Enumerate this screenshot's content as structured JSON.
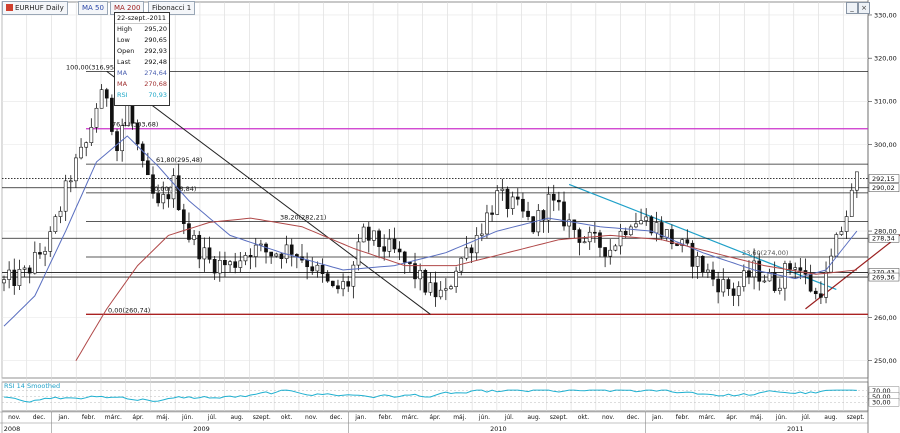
{
  "toolbar": {
    "symbol": "EURHUF Daily",
    "ma50": "MA 50",
    "ma200": "MA 200",
    "fib": "Fibonacci 1"
  },
  "window_controls": {
    "minimize": "_",
    "close": "×"
  },
  "info": {
    "date": "22-szept.-2011",
    "rows": [
      {
        "label": "High",
        "value": "295,20",
        "color": "#111111"
      },
      {
        "label": "Low",
        "value": "290,65",
        "color": "#111111"
      },
      {
        "label": "Open",
        "value": "292,93",
        "color": "#111111"
      },
      {
        "label": "Last",
        "value": "292,48",
        "color": "#111111"
      },
      {
        "label": "MA",
        "value": "274,64",
        "color": "#4a5fb0"
      },
      {
        "label": "MA",
        "value": "270,68",
        "color": "#a03030"
      },
      {
        "label": "RSI",
        "value": "70,93",
        "color": "#1fa8c8"
      }
    ]
  },
  "chart_data": {
    "type": "candlestick",
    "symbol": "EURHUF",
    "interval": "Daily",
    "price_ylim": [
      246,
      333
    ],
    "price_ticks": [
      "330,00",
      "320,00",
      "310,00",
      "300,00",
      "290,00",
      "280,00",
      "270,00",
      "260,00",
      "250,00"
    ],
    "price_tick_values": [
      330,
      320,
      310,
      300,
      290,
      280,
      270,
      260,
      250
    ],
    "price_tags": [
      {
        "label": "292,15",
        "value": 292.15,
        "color": "#111111"
      },
      {
        "label": "290,02",
        "value": 290.02,
        "color": "#111111"
      },
      {
        "label": "278,34",
        "value": 278.34,
        "color": "#111111"
      },
      {
        "label": "270,43",
        "value": 270.43,
        "color": "#111111"
      },
      {
        "label": "269,36",
        "value": 269.36,
        "color": "#111111"
      }
    ],
    "fibonacci_1": [
      {
        "label": "100,00(316,95)",
        "value": 316.95
      },
      {
        "label": "76,40(303,68)",
        "value": 303.68,
        "color": "#cc33cc"
      },
      {
        "label": "61,80(295,48)",
        "value": 295.48
      },
      {
        "label": "50,00(288,84)",
        "value": 288.84
      },
      {
        "label": "38,20(282,21)",
        "value": 282.21
      },
      {
        "label": "23,60(274,00)",
        "value": 274.0
      },
      {
        "label": "0,00(260,74)",
        "value": 260.74,
        "color": "#aa2222"
      }
    ],
    "horizontal_lines": [
      292.15,
      290.02,
      278.34,
      270.43,
      269.36
    ],
    "months": [
      "nov.",
      "dec.",
      "jan.",
      "febr.",
      "márc.",
      "ápr.",
      "máj.",
      "jún.",
      "júl.",
      "aug.",
      "szept.",
      "okt.",
      "nov.",
      "dec.",
      "jan.",
      "febr.",
      "márc.",
      "ápr.",
      "máj.",
      "jún.",
      "júl.",
      "aug.",
      "szept.",
      "okt.",
      "nov.",
      "dec.",
      "jan.",
      "febr.",
      "márc.",
      "ápr.",
      "máj.",
      "jún.",
      "júl.",
      "aug.",
      "szept."
    ],
    "years": [
      "2008",
      "2009",
      "2010",
      "2011"
    ],
    "close_anchors": [
      [
        0,
        268
      ],
      [
        4,
        270
      ],
      [
        9,
        278
      ],
      [
        13,
        293
      ],
      [
        16,
        300
      ],
      [
        18,
        309
      ],
      [
        20,
        312
      ],
      [
        22,
        299
      ],
      [
        24,
        310
      ],
      [
        27,
        294
      ],
      [
        30,
        285
      ],
      [
        33,
        291
      ],
      [
        36,
        279
      ],
      [
        40,
        273
      ],
      [
        44,
        272
      ],
      [
        48,
        276
      ],
      [
        52,
        275
      ],
      [
        56,
        276
      ],
      [
        60,
        272
      ],
      [
        64,
        266
      ],
      [
        67,
        268
      ],
      [
        70,
        279
      ],
      [
        73,
        277
      ],
      [
        76,
        275
      ],
      [
        80,
        270
      ],
      [
        83,
        266
      ],
      [
        86,
        265
      ],
      [
        88,
        272
      ],
      [
        92,
        279
      ],
      [
        96,
        288
      ],
      [
        100,
        285
      ],
      [
        103,
        281
      ],
      [
        106,
        287
      ],
      [
        109,
        283
      ],
      [
        113,
        278
      ],
      [
        118,
        276
      ],
      [
        122,
        283
      ],
      [
        126,
        282
      ],
      [
        130,
        278
      ],
      [
        134,
        274
      ],
      [
        138,
        269
      ],
      [
        142,
        266
      ],
      [
        146,
        271
      ],
      [
        150,
        268
      ],
      [
        154,
        273
      ],
      [
        158,
        265
      ],
      [
        160,
        269
      ],
      [
        162,
        277
      ],
      [
        164,
        284
      ],
      [
        166,
        292
      ]
    ],
    "ma50_anchors": [
      [
        0,
        258
      ],
      [
        6,
        265
      ],
      [
        12,
        280
      ],
      [
        18,
        296
      ],
      [
        24,
        302
      ],
      [
        30,
        295
      ],
      [
        36,
        287
      ],
      [
        44,
        279
      ],
      [
        54,
        275
      ],
      [
        66,
        271
      ],
      [
        76,
        272
      ],
      [
        86,
        275
      ],
      [
        96,
        280
      ],
      [
        106,
        283
      ],
      [
        116,
        281
      ],
      [
        126,
        280
      ],
      [
        136,
        275
      ],
      [
        146,
        271
      ],
      [
        154,
        269
      ],
      [
        160,
        271
      ],
      [
        166,
        280
      ]
    ],
    "ma200_anchors": [
      [
        14,
        250
      ],
      [
        20,
        262
      ],
      [
        26,
        272
      ],
      [
        32,
        279
      ],
      [
        40,
        282
      ],
      [
        48,
        283
      ],
      [
        58,
        281
      ],
      [
        68,
        276
      ],
      [
        78,
        272
      ],
      [
        88,
        272
      ],
      [
        98,
        275
      ],
      [
        108,
        278
      ],
      [
        118,
        279
      ],
      [
        128,
        278
      ],
      [
        138,
        275
      ],
      [
        148,
        272
      ],
      [
        158,
        270
      ],
      [
        166,
        271
      ]
    ],
    "rsi": {
      "label": "RSI 14 Smoothed",
      "period": 14,
      "last": 70.93,
      "ticks": [
        "70,00",
        "50,00",
        "30,00"
      ],
      "tick_values": [
        70,
        50,
        30
      ]
    }
  }
}
